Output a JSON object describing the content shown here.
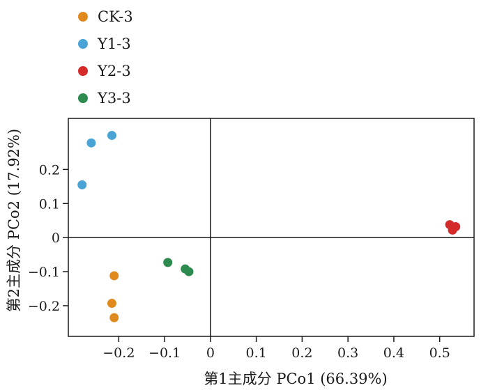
{
  "chart_data": {
    "type": "scatter",
    "xlabel": "第1主成分 PCo1 (66.39%)",
    "ylabel": "第2主成分 PCo2 (17.92%)",
    "xlim": [
      -0.31,
      0.575
    ],
    "ylim": [
      -0.29,
      0.35
    ],
    "x_ticks": [
      -0.2,
      -0.1,
      0,
      0.1,
      0.2,
      0.3,
      0.4,
      0.5
    ],
    "x_tick_labels": [
      "−0.2",
      "−0.1",
      "0",
      "0.1",
      "0.2",
      "0.3",
      "0.4",
      "0.5"
    ],
    "y_ticks": [
      0.2,
      0.1,
      0,
      -0.1,
      -0.2
    ],
    "y_tick_labels": [
      "0.2",
      "0.1",
      "0",
      "−0.1",
      "−0.2"
    ],
    "reference_lines": {
      "x": 0,
      "y": 0
    },
    "legend_position": "top-left",
    "series": [
      {
        "name": "CK-3",
        "color": "#e08a1e",
        "points": [
          {
            "x": -0.21,
            "y": -0.112
          },
          {
            "x": -0.215,
            "y": -0.193
          },
          {
            "x": -0.21,
            "y": -0.235
          }
        ]
      },
      {
        "name": "Y1-3",
        "color": "#4aa3d5",
        "points": [
          {
            "x": -0.215,
            "y": 0.3
          },
          {
            "x": -0.26,
            "y": 0.278
          },
          {
            "x": -0.28,
            "y": 0.155
          }
        ]
      },
      {
        "name": "Y2-3",
        "color": "#d42a2a",
        "points": [
          {
            "x": 0.522,
            "y": 0.038
          },
          {
            "x": 0.535,
            "y": 0.032
          },
          {
            "x": 0.528,
            "y": 0.022
          }
        ]
      },
      {
        "name": "Y3-3",
        "color": "#2e8b50",
        "points": [
          {
            "x": -0.093,
            "y": -0.073
          },
          {
            "x": -0.055,
            "y": -0.092
          },
          {
            "x": -0.047,
            "y": -0.1
          }
        ]
      }
    ]
  }
}
